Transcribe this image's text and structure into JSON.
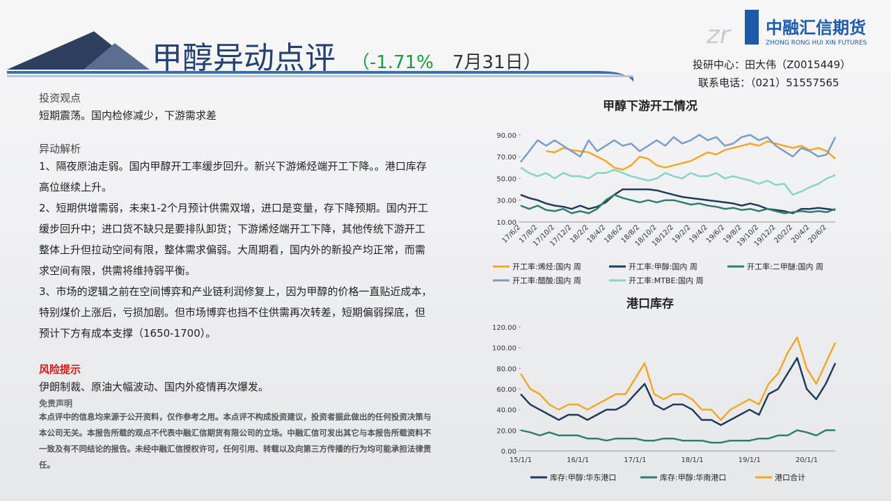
{
  "header": {
    "title": "甲醇异动点评",
    "change": "（-1.71%",
    "date": "7月31日）"
  },
  "logo": {
    "mark": "zr",
    "name": "中融汇信期货",
    "sub": "ZHONG RONG HUI XIN FUTURES"
  },
  "contact": [
    "投研中心：田大伟（Z0015449）",
    "联系电话：（021）51557565"
  ],
  "view": {
    "heading": "投资观点",
    "text": "短期震荡。国内检修减少，下游需求差"
  },
  "analysis": {
    "heading": "异动解析",
    "paragraphs": [
      "1、隔夜原油走弱。国内甲醇开工率缓步回升。新兴下游烯烃端开工下降。。港口库存高位继续上升。",
      "2、短期供增需弱，未来1-2个月预计供需双增，进口是变量，存下降预期。国内开工缓步回升中；进口货不缺只是要排队卸货；下游烯烃端开工下降，其他传统下游开工整体上升但拉动空间有限，整体需求偏弱。大周期看，国内外的新投产均正常，而需求空间有限，供需将维持弱平衡。",
      "3、市场的逻辑之前在空间博弈和产业链利润修复上，因为甲醇的价格一直贴近成本，特别煤价上涨后，亏损加剧。但市场博弈也挡不住供需再次转差，短期偏弱探底，但预计下方有成本支撑（1650-1700）。"
    ]
  },
  "risk": {
    "heading": "风险提示",
    "text": "伊朗制裁、原油大幅波动、国内外疫情再次爆发。"
  },
  "disclaimer": {
    "heading": "免责声明",
    "text": "本点评中的信息均来源于公开资料，仅作参考之用。本点评不构成投资建议，投资者据此做出的任何投资决策与本公司无关。本报告所载的观点不代表中融汇信期货有限公司的立场。中融汇信可发出其它与本报告所载资料不一致及有不同结论的报告。未经中融汇信授权许可，任何引用、转载以及向第三方传播的行为均可能承担法律责任。"
  },
  "chart_data": [
    {
      "type": "line",
      "title": "甲醇下游开工情况",
      "categories": [
        "17/6/2",
        null,
        "17/8/2",
        null,
        "17/10/2",
        null,
        "17/12/2",
        null,
        "18/2/2",
        null,
        "18/4/2",
        null,
        "18/6/2",
        null,
        "18/8/2",
        null,
        "18/10/2",
        null,
        "18/12/2",
        null,
        "19/2/2",
        null,
        "19/4/2",
        null,
        "19/6/2",
        null,
        "19/8/2",
        null,
        "19/10/2",
        null,
        "19/12/2",
        null,
        "20/2/2",
        null,
        "20/4/2",
        null,
        "20/6/2",
        null
      ],
      "ylim": [
        10,
        95
      ],
      "yticks": [
        {
          "value": 10,
          "label": "10.00"
        },
        {
          "value": 30,
          "label": "30.00"
        },
        {
          "value": 50,
          "label": "50.00"
        },
        {
          "value": 70,
          "label": "70.00"
        },
        {
          "value": 90,
          "label": "90.00"
        }
      ],
      "series": [
        {
          "name": "开工率:烯烃:国内 周",
          "color": "#f5a623",
          "values": [
            null,
            null,
            null,
            75,
            74,
            78,
            76,
            75,
            74,
            70,
            66,
            60,
            58,
            62,
            70,
            68,
            62,
            60,
            62,
            64,
            66,
            70,
            74,
            72,
            76,
            78,
            80,
            82,
            80,
            84,
            82,
            80,
            78,
            80,
            76,
            78,
            75,
            68
          ]
        },
        {
          "name": "开工率:甲醇:国内 周",
          "color": "#1f3a5a",
          "values": [
            35,
            32,
            30,
            27,
            25,
            24,
            22,
            25,
            22,
            24,
            28,
            35,
            40,
            40,
            40,
            40,
            39,
            37,
            35,
            33,
            32,
            31,
            30,
            29,
            28,
            27,
            25,
            27,
            25,
            22,
            21,
            20,
            18,
            22,
            22,
            23,
            22,
            21
          ]
        },
        {
          "name": "开工率:二甲醚:国内 周",
          "color": "#2e7d6e",
          "values": [
            25,
            22,
            25,
            21,
            20,
            22,
            18,
            20,
            18,
            22,
            30,
            35,
            32,
            30,
            28,
            30,
            28,
            30,
            30,
            28,
            26,
            27,
            25,
            24,
            22,
            23,
            21,
            22,
            20,
            22,
            20,
            18,
            19,
            20,
            19,
            20,
            19,
            22
          ]
        },
        {
          "name": "开工率:醋酸:国内 周",
          "color": "#7a9cc6",
          "values": [
            65,
            75,
            85,
            80,
            85,
            80,
            75,
            70,
            85,
            75,
            80,
            85,
            80,
            82,
            75,
            80,
            85,
            80,
            88,
            82,
            85,
            90,
            85,
            88,
            80,
            82,
            88,
            90,
            85,
            88,
            80,
            75,
            70,
            78,
            75,
            70,
            72,
            88
          ]
        },
        {
          "name": "开工率:MTBE:国内 周",
          "color": "#86d4c4",
          "values": [
            60,
            55,
            52,
            55,
            50,
            55,
            52,
            52,
            50,
            55,
            55,
            58,
            55,
            52,
            50,
            48,
            50,
            55,
            52,
            50,
            55,
            52,
            52,
            55,
            50,
            52,
            50,
            48,
            45,
            48,
            44,
            45,
            35,
            38,
            42,
            45,
            50,
            53
          ]
        }
      ]
    },
    {
      "type": "line",
      "title": "港口库存",
      "categories": [
        "15/1/1",
        null,
        null,
        null,
        null,
        null,
        "16/1/1",
        null,
        null,
        null,
        null,
        null,
        "17/1/1",
        null,
        null,
        null,
        null,
        null,
        "18/1/1",
        null,
        null,
        null,
        null,
        null,
        "19/1/1",
        null,
        null,
        null,
        null,
        null,
        "20/1/1",
        null,
        null,
        null
      ],
      "ylim": [
        0,
        120
      ],
      "yticks": [
        {
          "value": 0,
          "label": "0.00"
        },
        {
          "value": 20,
          "label": "20.00"
        },
        {
          "value": 40,
          "label": "40.00"
        },
        {
          "value": 60,
          "label": "60.00"
        },
        {
          "value": 80,
          "label": "80.00"
        },
        {
          "value": 100,
          "label": "100.00"
        },
        {
          "value": 120,
          "label": "120.00"
        }
      ],
      "series": [
        {
          "name": "库存:甲醇:华东港口",
          "color": "#1f3a5a",
          "values": [
            55,
            45,
            40,
            35,
            30,
            35,
            35,
            30,
            35,
            40,
            40,
            45,
            55,
            65,
            45,
            40,
            45,
            45,
            40,
            30,
            30,
            25,
            30,
            35,
            40,
            35,
            55,
            60,
            75,
            90,
            60,
            50,
            65,
            85
          ]
        },
        {
          "name": "库存:甲醇:华南港口",
          "color": "#2e7d6e",
          "values": [
            20,
            18,
            15,
            18,
            15,
            15,
            15,
            12,
            12,
            10,
            12,
            12,
            12,
            10,
            10,
            12,
            12,
            10,
            10,
            10,
            8,
            8,
            10,
            10,
            10,
            12,
            12,
            15,
            15,
            20,
            18,
            15,
            20,
            20
          ]
        },
        {
          "name": "港口合计",
          "color": "#f5a623",
          "values": [
            75,
            60,
            55,
            45,
            40,
            45,
            45,
            40,
            45,
            50,
            55,
            55,
            70,
            85,
            55,
            50,
            55,
            55,
            50,
            40,
            40,
            30,
            40,
            45,
            50,
            45,
            65,
            75,
            95,
            110,
            80,
            65,
            85,
            105
          ]
        }
      ]
    }
  ]
}
